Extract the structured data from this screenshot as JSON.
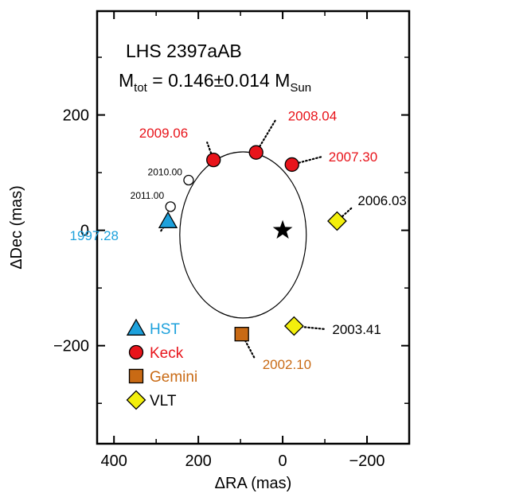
{
  "chart_data": {
    "type": "scatter",
    "title": "LHS 2397aAB",
    "subtitle": {
      "prefix": "M",
      "prefix_sub": "tot",
      "value": " = 0.146±0.014 M",
      "unit_sub": "Sun"
    },
    "xlabel": "ΔRA (mas)",
    "ylabel": "ΔDec (mas)",
    "xlim": [
      440,
      -300
    ],
    "ylim": [
      -370,
      380
    ],
    "x_reversed": true,
    "grid": false,
    "x_ticks": [
      400,
      200,
      0,
      -200
    ],
    "x_tick_labels": [
      "400",
      "200",
      "0",
      "−200"
    ],
    "y_ticks": [
      200,
      0,
      -200
    ],
    "y_tick_labels": [
      "200",
      "0",
      "−200"
    ],
    "legend_position": "bottom-left",
    "primary_star": {
      "x": 0,
      "y": 0,
      "marker": "star"
    },
    "orbit": {
      "center": [
        94,
        -8
      ],
      "semi_axes": [
        150,
        144
      ]
    },
    "series": [
      {
        "name": "HST",
        "marker": "triangle",
        "color": "#1da1dc",
        "label_color": "#1da1dc",
        "points": [
          {
            "x": 272,
            "y": 16,
            "label": "1997.28"
          }
        ]
      },
      {
        "name": "Keck",
        "marker": "circle",
        "color": "#e8141b",
        "label_color": "#e8141b",
        "points": [
          {
            "x": 164,
            "y": 122,
            "label": "2009.06"
          },
          {
            "x": 63,
            "y": 135,
            "label": "2008.04"
          },
          {
            "x": -22,
            "y": 114,
            "label": "2007.30"
          }
        ]
      },
      {
        "name": "Gemini",
        "marker": "square",
        "color": "#c96a14",
        "label_color": "#c96a14",
        "points": [
          {
            "x": 97,
            "y": -180,
            "label": "2002.10"
          }
        ]
      },
      {
        "name": "VLT",
        "marker": "diamond",
        "color": "#f3ef0c",
        "label_color": "#000000",
        "points": [
          {
            "x": -129,
            "y": 16,
            "label": "2006.03"
          },
          {
            "x": -27,
            "y": -166,
            "label": "2003.41"
          }
        ]
      }
    ],
    "predicted_points": [
      {
        "x": 223,
        "y": 87,
        "label": "2010.00"
      },
      {
        "x": 266,
        "y": 41,
        "label": "2011.00"
      }
    ]
  }
}
